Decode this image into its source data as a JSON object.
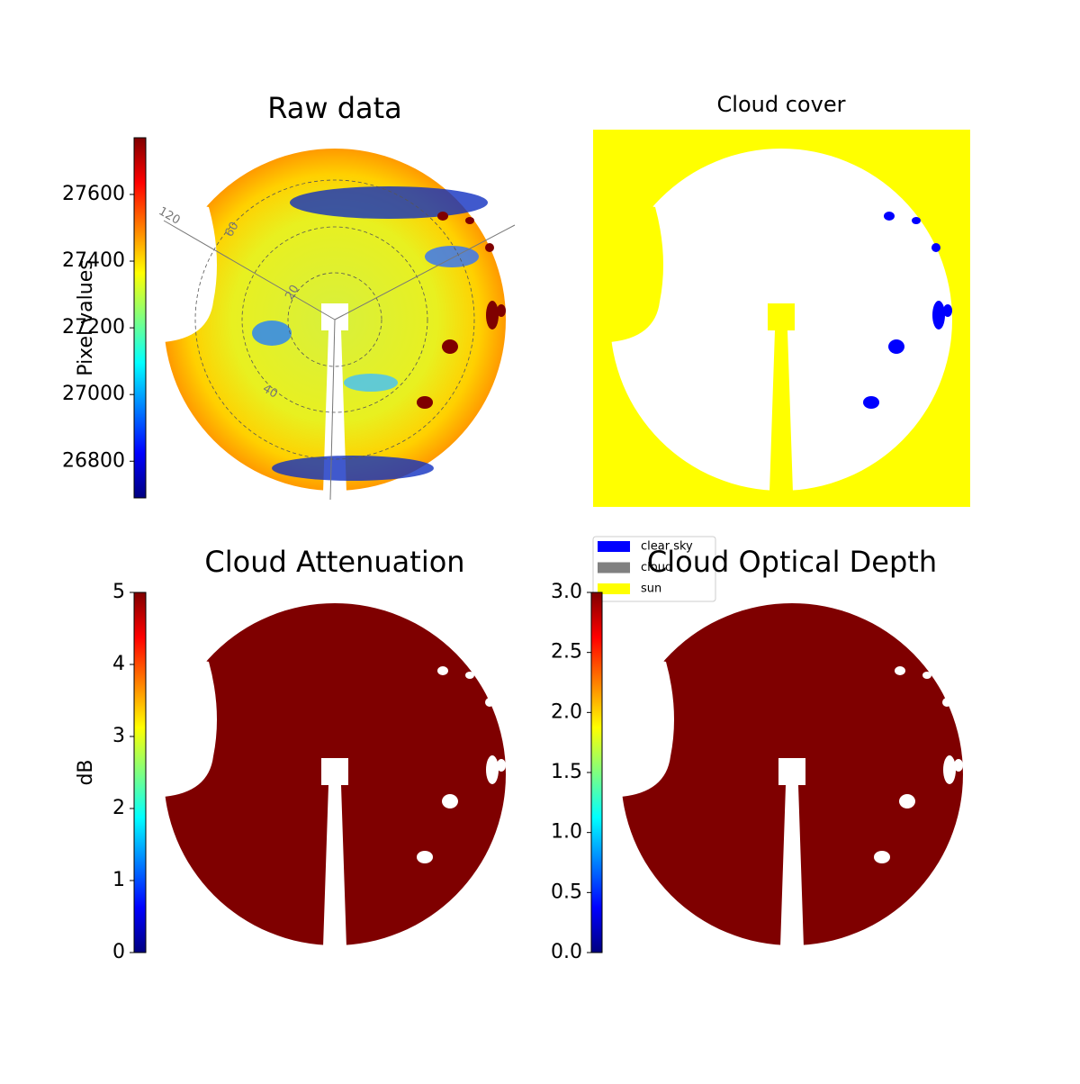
{
  "chart_data": [
    {
      "type": "image",
      "title": "Raw data",
      "colorbar_label": "Pixel values",
      "colormap": "jet",
      "ylim": [
        26690,
        27770
      ],
      "yticks": [
        26800,
        27000,
        27200,
        27400,
        27600
      ],
      "polar_labels": [
        "120",
        "60",
        "20",
        "40"
      ]
    },
    {
      "type": "mask",
      "title": "Cloud cover",
      "legend": [
        {
          "name": "clear sky",
          "color": "#0000ff"
        },
        {
          "name": "cloud",
          "color": "#808080"
        },
        {
          "name": "sun",
          "color": "#ffff00"
        }
      ]
    },
    {
      "type": "image",
      "title": "Cloud Attenuation",
      "colorbar_label": "dB",
      "colormap": "jet",
      "ylim": [
        0,
        5
      ],
      "yticks": [
        0,
        1,
        2,
        3,
        4,
        5
      ]
    },
    {
      "type": "image",
      "title": "Cloud Optical Depth",
      "colormap": "jet",
      "ylim": [
        0,
        3
      ],
      "yticks": [
        {
          "value": 0,
          "label": "0.0"
        },
        {
          "value": 0.5,
          "label": "0.5"
        },
        {
          "value": 1,
          "label": "1.0"
        },
        {
          "value": 1.5,
          "label": "1.5"
        },
        {
          "value": 2,
          "label": "2.0"
        },
        {
          "value": 2.5,
          "label": "2.5"
        },
        {
          "value": 3,
          "label": "3.0"
        }
      ]
    }
  ]
}
